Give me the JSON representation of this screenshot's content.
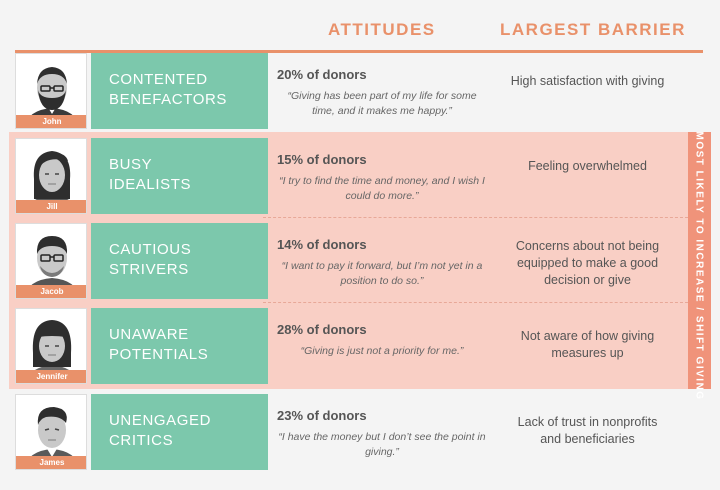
{
  "headers": {
    "attitudes": "ATTITUDES",
    "barrier": "LARGEST BARRIER"
  },
  "side_label": "MOST LIKELY TO INCREASE / SHIFT GIVING",
  "rows": [
    {
      "name": "John",
      "segment_line1": "CONTENTED",
      "segment_line2": "BENEFACTORS",
      "percent": "20% of donors",
      "quote": "“Giving has been part of my life for some time, and it makes me happy.”",
      "barrier": "High satisfaction with giving"
    },
    {
      "name": "Jill",
      "segment_line1": "BUSY",
      "segment_line2": "IDEALISTS",
      "percent": "15% of donors",
      "quote": "“I try to find the time and money, and I wish I could do more.”",
      "barrier": "Feeling overwhelmed"
    },
    {
      "name": "Jacob",
      "segment_line1": "CAUTIOUS",
      "segment_line2": "STRIVERS",
      "percent": "14% of donors",
      "quote": "“I want to pay it forward, but I’m not yet in a position to do so.”",
      "barrier": "Concerns about not being equipped to make a good decision or give"
    },
    {
      "name": "Jennifer",
      "segment_line1": "UNAWARE",
      "segment_line2": "POTENTIALS",
      "percent": "28% of donors",
      "quote": "“Giving is just not a priority for me.”",
      "barrier": "Not aware of how giving measures up"
    },
    {
      "name": "James",
      "segment_line1": "UNENGAGED",
      "segment_line2": "CRITICS",
      "percent": "23% of donors",
      "quote": "“I have the money but I don’t see the point in giving.”",
      "barrier": "Lack of trust in nonprofits and beneficiaries"
    }
  ],
  "colors": {
    "accent": "#e9916a",
    "segment": "#7cc8ac",
    "band": "#f9cfc5"
  }
}
